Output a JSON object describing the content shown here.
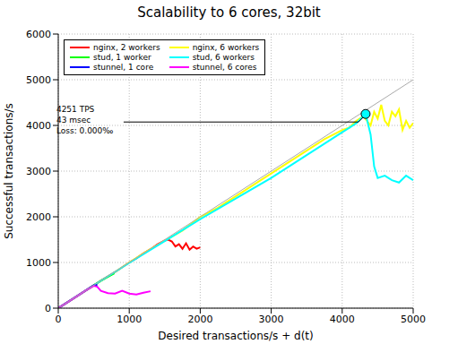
{
  "chart_data": {
    "type": "line",
    "title": "Scalability to 6 cores, 32bit",
    "x_label": "Desired transactions/s + d(t)",
    "y_label": "Successful transactions/s",
    "xlim": [
      0,
      5000
    ],
    "xticks": [
      0,
      1000,
      2000,
      3000,
      4000,
      5000
    ],
    "ylim": [
      0,
      6000
    ],
    "yticks": [
      0,
      1000,
      2000,
      3000,
      4000,
      5000,
      6000
    ],
    "grid": true,
    "legend": "upper left",
    "series": [
      {
        "name": "nginx, 2 workers",
        "color": "#ff0000",
        "x": [
          0,
          200,
          400,
          600,
          800,
          1000,
          1100,
          1200,
          1300,
          1400,
          1500,
          1550,
          1600,
          1650,
          1700,
          1750,
          1800,
          1850,
          1900,
          1950,
          2000
        ],
        "values": [
          0,
          200,
          400,
          600,
          790,
          1000,
          1090,
          1200,
          1290,
          1400,
          1480,
          1500,
          1460,
          1350,
          1400,
          1300,
          1420,
          1280,
          1350,
          1300,
          1330
        ]
      },
      {
        "name": "nginx, 6 workers",
        "color": "#ffff00",
        "x": [
          0,
          250,
          500,
          750,
          1000,
          1250,
          1500,
          1750,
          2000,
          2250,
          2500,
          2750,
          3000,
          3250,
          3500,
          3750,
          4000,
          4100,
          4200,
          4300,
          4400,
          4450,
          4500,
          4550,
          4600,
          4650,
          4700,
          4750,
          4800,
          4850,
          4900,
          4950,
          5000
        ],
        "values": [
          0,
          250,
          500,
          740,
          1000,
          1250,
          1480,
          1700,
          2000,
          2200,
          2450,
          2700,
          2950,
          3200,
          3450,
          3700,
          3900,
          3950,
          4100,
          4200,
          4000,
          4300,
          4150,
          4450,
          4100,
          4000,
          4300,
          4200,
          4350,
          3900,
          4100,
          3950,
          4050
        ]
      },
      {
        "name": "stud, 1 worker",
        "color": "#00ff00",
        "x": [
          0,
          200,
          400,
          600,
          790
        ],
        "values": [
          0,
          200,
          400,
          600,
          760
        ]
      },
      {
        "name": "stud, 6 workers",
        "color": "#00ffff",
        "x": [
          0,
          500,
          1000,
          1500,
          2000,
          2500,
          3000,
          3250,
          3500,
          3750,
          4000,
          4100,
          4200,
          4330,
          4400,
          4450,
          4500,
          4600,
          4700,
          4800,
          4900,
          5000
        ],
        "values": [
          0,
          500,
          990,
          1470,
          1950,
          2400,
          2850,
          3100,
          3350,
          3600,
          3850,
          3950,
          4050,
          4251,
          3800,
          3100,
          2850,
          2900,
          2800,
          2750,
          2900,
          2800
        ]
      },
      {
        "name": "stunnel, 1 core",
        "color": "#0000ff",
        "x": [
          0,
          250,
          500,
          550
        ],
        "values": [
          0,
          250,
          500,
          510
        ]
      },
      {
        "name": "stunnel, 6 cores",
        "color": "#ff00ff",
        "x": [
          0,
          200,
          400,
          500,
          550,
          600,
          700,
          800,
          900,
          1000,
          1100,
          1200,
          1300
        ],
        "values": [
          0,
          200,
          400,
          490,
          470,
          380,
          330,
          320,
          380,
          320,
          300,
          340,
          370
        ]
      },
      {
        "color": "#aaaaaa",
        "x": [
          0,
          5000
        ],
        "values": [
          0,
          5000
        ]
      }
    ],
    "annotation": {
      "text": [
        "4251 TPS",
        "43 msec",
        "Loss: 0.000‰"
      ],
      "x": 4330,
      "y": 4251,
      "color": "#00ffff"
    }
  }
}
